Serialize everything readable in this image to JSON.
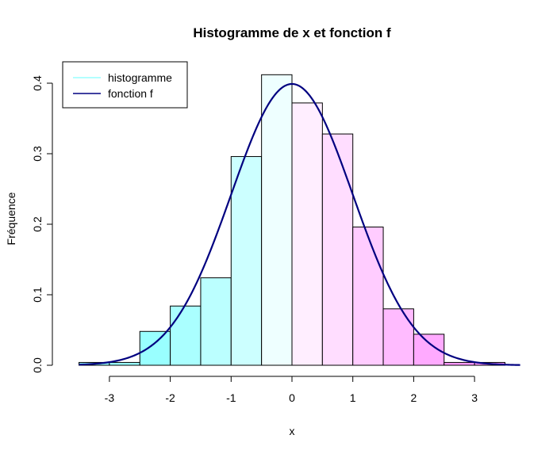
{
  "chart_data": {
    "type": "bar",
    "title": "Histogramme de x et fonction f",
    "xlabel": "x",
    "ylabel": "Fréquence",
    "xlim": [
      -3.5,
      3.75
    ],
    "ylim": [
      0,
      0.42
    ],
    "x_ticks": [
      -3,
      -2,
      -1,
      0,
      1,
      2,
      3
    ],
    "x_tick_labels": [
      "-3",
      "-2",
      "-1",
      "0",
      "1",
      "2",
      "3"
    ],
    "y_ticks": [
      0,
      0.1,
      0.2,
      0.3,
      0.4
    ],
    "y_tick_labels": [
      "0.0",
      "0.1",
      "0.2",
      "0.3",
      "0.4"
    ],
    "bins": [
      {
        "x0": -3.5,
        "x1": -3.0,
        "value": 0.004,
        "color": "#99ffff"
      },
      {
        "x0": -3.0,
        "x1": -2.5,
        "value": 0.004,
        "color": "#99ffff"
      },
      {
        "x0": -2.5,
        "x1": -2.0,
        "value": 0.048,
        "color": "#99ffff"
      },
      {
        "x0": -2.0,
        "x1": -1.5,
        "value": 0.084,
        "color": "#aaffff"
      },
      {
        "x0": -1.5,
        "x1": -1.0,
        "value": 0.124,
        "color": "#bbffff"
      },
      {
        "x0": -1.0,
        "x1": -0.5,
        "value": 0.296,
        "color": "#ccffff"
      },
      {
        "x0": -0.5,
        "x1": 0.0,
        "value": 0.412,
        "color": "#eeffff"
      },
      {
        "x0": 0.0,
        "x1": 0.5,
        "value": 0.372,
        "color": "#ffeeff"
      },
      {
        "x0": 0.5,
        "x1": 1.0,
        "value": 0.328,
        "color": "#ffddff"
      },
      {
        "x0": 1.0,
        "x1": 1.5,
        "value": 0.196,
        "color": "#ffccff"
      },
      {
        "x0": 1.5,
        "x1": 2.0,
        "value": 0.08,
        "color": "#ffbbff"
      },
      {
        "x0": 2.0,
        "x1": 2.5,
        "value": 0.044,
        "color": "#ffaaff"
      },
      {
        "x0": 2.5,
        "x1": 3.0,
        "value": 0.004,
        "color": "#ff99ff"
      },
      {
        "x0": 3.0,
        "x1": 3.5,
        "value": 0.004,
        "color": "#ff99ff"
      }
    ],
    "series": [
      {
        "name": "histogramme",
        "type": "bar",
        "color": "#99ffff"
      },
      {
        "name": "fonction f",
        "type": "line",
        "color": "#000080",
        "function": "normal density, mean 0, sd 1",
        "domain": [
          -3.5,
          3.75
        ]
      }
    ],
    "legend": {
      "position": "top-left",
      "entries": [
        {
          "label": "histogramme",
          "color": "#99ffff"
        },
        {
          "label": "fonction f",
          "color": "#000080"
        }
      ]
    },
    "grid": false
  }
}
